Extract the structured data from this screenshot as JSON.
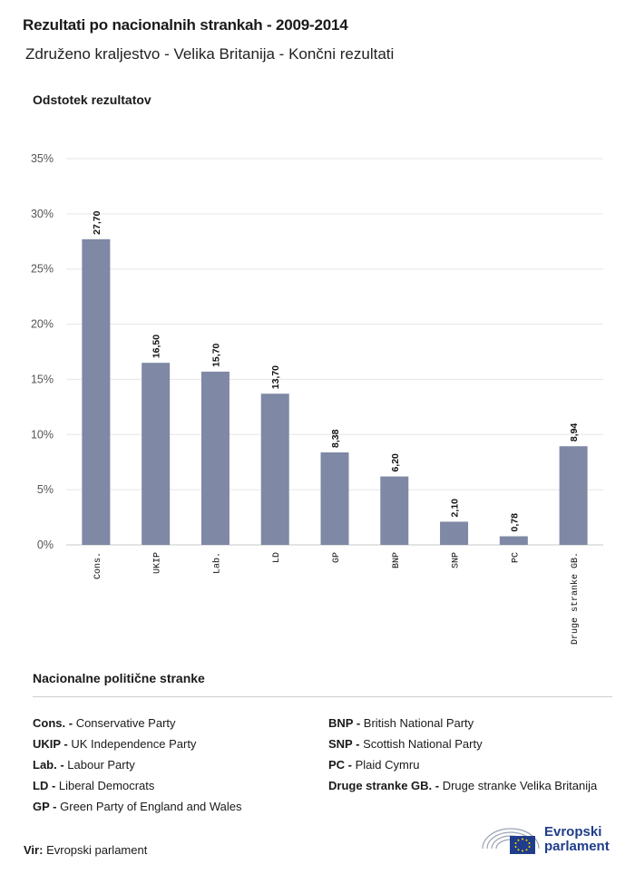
{
  "header": {
    "title": "Rezultati po nacionalnih strankah - 2009-2014",
    "subtitle": "Združeno kraljestvo - Velika Britanija - Končni rezultati"
  },
  "chart_data": {
    "type": "bar",
    "ylabel": "Odstotek rezultatov",
    "categories": [
      "Cons.",
      "UKIP",
      "Lab.",
      "LD",
      "GP",
      "BNP",
      "SNP",
      "PC",
      "Druge stranke GB."
    ],
    "values": [
      27.7,
      16.5,
      15.7,
      13.7,
      8.38,
      6.2,
      2.1,
      0.78,
      8.94
    ],
    "value_labels": [
      "27,70",
      "16,50",
      "15,70",
      "13,70",
      "8,38",
      "6,20",
      "2,10",
      "0,78",
      "8,94"
    ],
    "ylim": [
      0,
      35
    ],
    "yticks": [
      "0%",
      "5%",
      "10%",
      "15%",
      "20%",
      "25%",
      "30%",
      "35%"
    ],
    "grid": true,
    "bar_color": "#7f88a4"
  },
  "legend": {
    "title": "Nacionalne politične stranke",
    "left": [
      {
        "abbr": "Cons. -",
        "name": "Conservative Party"
      },
      {
        "abbr": "UKIP -",
        "name": "UK Independence Party"
      },
      {
        "abbr": "Lab. -",
        "name": "Labour Party"
      },
      {
        "abbr": "LD -",
        "name": "Liberal Democrats"
      },
      {
        "abbr": "GP -",
        "name": "Green Party of England and Wales"
      }
    ],
    "right": [
      {
        "abbr": "BNP -",
        "name": "British National Party"
      },
      {
        "abbr": "SNP -",
        "name": "Scottish National Party"
      },
      {
        "abbr": "PC -",
        "name": "Plaid Cymru"
      },
      {
        "abbr": "Druge stranke GB. -",
        "name": "Druge stranke Velika Britanija"
      }
    ]
  },
  "footer": {
    "source_label": "Vir:",
    "source_value": "Evropski parlament",
    "logo_line1": "Evropski",
    "logo_line2": "parlament",
    "logo_color": "#1f3d8a"
  }
}
